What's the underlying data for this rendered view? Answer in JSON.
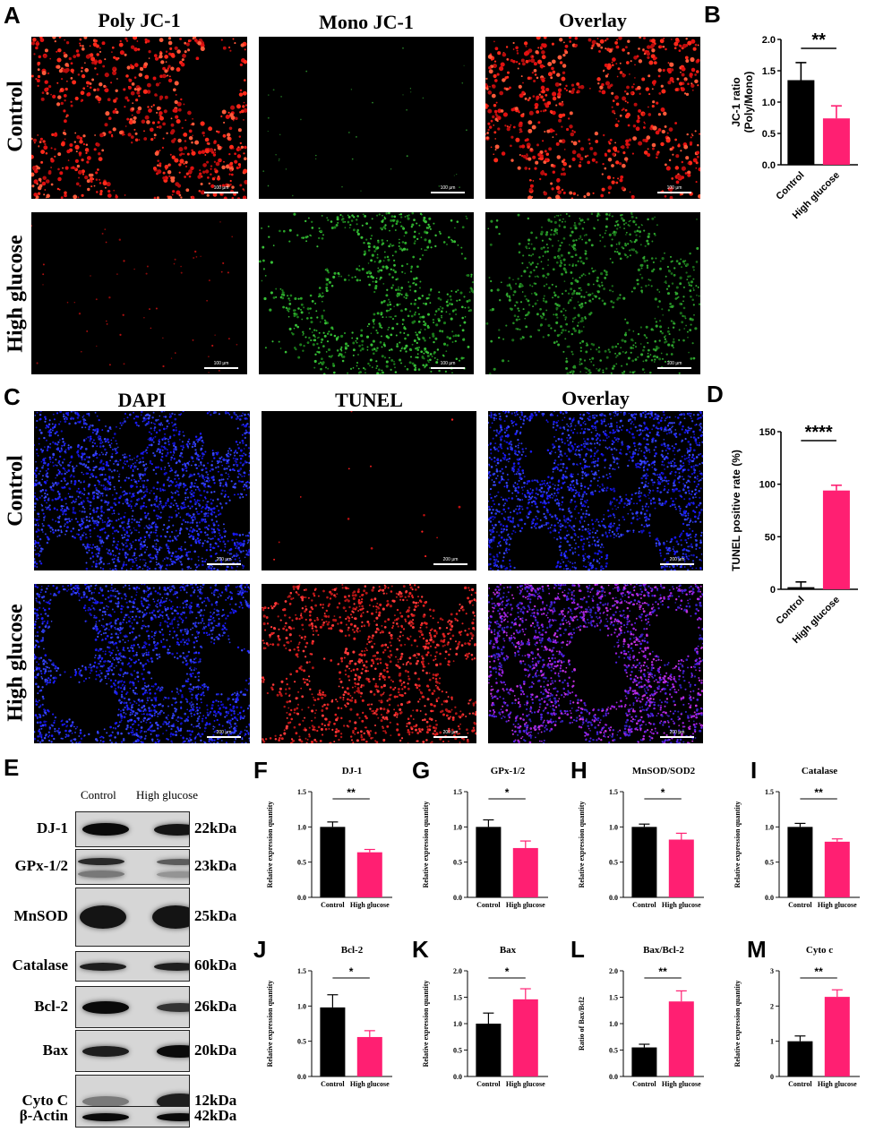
{
  "panelA": {
    "letter": "A",
    "columns": [
      "Poly JC-1",
      "Mono JC-1",
      "Overlay"
    ],
    "rows": [
      "Control",
      "High glucose"
    ],
    "scale": "100 μm"
  },
  "panelC": {
    "letter": "C",
    "columns": [
      "DAPI",
      "TUNEL",
      "Overlay"
    ],
    "rows": [
      "Control",
      "High glucose"
    ],
    "scale": "200 μm"
  },
  "panelE": {
    "letter": "E",
    "headers": [
      "Control",
      "High glucose"
    ],
    "proteins": [
      {
        "name": "DJ-1",
        "kda": "22kDa"
      },
      {
        "name": "GPx-1/2",
        "kda": "23kDa"
      },
      {
        "name": "MnSOD",
        "kda": "25kDa"
      },
      {
        "name": "Catalase",
        "kda": "60kDa"
      },
      {
        "name": "Bcl-2",
        "kda": "26kDa"
      },
      {
        "name": "Bax",
        "kda": "20kDa"
      },
      {
        "name": "Cyto C",
        "kda": "12kDa"
      },
      {
        "name": "β-Actin",
        "kda": "42kDa"
      }
    ]
  },
  "colors": {
    "control": "#000000",
    "high_glucose": "#ff1f72",
    "high_glucose_light": "#ff2d78"
  },
  "chart_data": [
    {
      "id": "B",
      "letter": "B",
      "type": "bar",
      "categories": [
        "Control",
        "High glucose"
      ],
      "values": [
        1.35,
        0.74
      ],
      "errors": [
        0.28,
        0.2
      ],
      "ylabel": "JC-1 ratio\n(Poly/Mono)",
      "title": "",
      "ylim": [
        0,
        2.0
      ],
      "yticks": [
        "0.0",
        "0.5",
        "1.0",
        "1.5",
        "2.0"
      ],
      "significance": "**"
    },
    {
      "id": "D",
      "letter": "D",
      "type": "bar",
      "categories": [
        "Control",
        "High glucose"
      ],
      "values": [
        2,
        94
      ],
      "errors": [
        5,
        5
      ],
      "ylabel": "TUNEL positive rate (%)",
      "title": "",
      "ylim": [
        0,
        150
      ],
      "yticks": [
        "0",
        "50",
        "100",
        "150"
      ],
      "significance": "****"
    },
    {
      "id": "F",
      "letter": "F",
      "type": "bar",
      "title": "DJ-1",
      "categories": [
        "Control",
        "High glucose"
      ],
      "values": [
        1.0,
        0.64
      ],
      "errors": [
        0.07,
        0.04
      ],
      "ylabel": "Relative expression quantity",
      "ylim": [
        0,
        1.5
      ],
      "yticks": [
        "0.0",
        "0.5",
        "1.0",
        "1.5"
      ],
      "significance": "**"
    },
    {
      "id": "G",
      "letter": "G",
      "type": "bar",
      "title": "GPx-1/2",
      "categories": [
        "Control",
        "High glucose"
      ],
      "values": [
        1.0,
        0.7
      ],
      "errors": [
        0.1,
        0.1
      ],
      "ylabel": "Relative expression quantity",
      "ylim": [
        0,
        1.5
      ],
      "yticks": [
        "0.0",
        "0.5",
        "1.0",
        "1.5"
      ],
      "significance": "*"
    },
    {
      "id": "H",
      "letter": "H",
      "type": "bar",
      "title": "MnSOD/SOD2",
      "categories": [
        "Control",
        "High glucose"
      ],
      "values": [
        1.0,
        0.82
      ],
      "errors": [
        0.04,
        0.09
      ],
      "ylabel": "Relative expression quantity",
      "ylim": [
        0,
        1.5
      ],
      "yticks": [
        "0.0",
        "0.5",
        "1.0",
        "1.5"
      ],
      "significance": "*"
    },
    {
      "id": "I",
      "letter": "I",
      "type": "bar",
      "title": "Catalase",
      "categories": [
        "Control",
        "High glucose"
      ],
      "values": [
        1.0,
        0.79
      ],
      "errors": [
        0.05,
        0.04
      ],
      "ylabel": "Relative expression quantity",
      "ylim": [
        0,
        1.5
      ],
      "yticks": [
        "0.0",
        "0.5",
        "1.0",
        "1.5"
      ],
      "significance": "**"
    },
    {
      "id": "J",
      "letter": "J",
      "type": "bar",
      "title": "Bcl-2",
      "categories": [
        "Control",
        "High glucose"
      ],
      "values": [
        0.98,
        0.56
      ],
      "errors": [
        0.18,
        0.09
      ],
      "ylabel": "Relative expression quantity",
      "ylim": [
        0,
        1.5
      ],
      "yticks": [
        "0.0",
        "0.5",
        "1.0",
        "1.5"
      ],
      "significance": "*"
    },
    {
      "id": "K",
      "letter": "K",
      "type": "bar",
      "title": "Bax",
      "categories": [
        "Control",
        "High glucose"
      ],
      "values": [
        1.0,
        1.46
      ],
      "errors": [
        0.2,
        0.2
      ],
      "ylabel": "Relative expression quantity",
      "ylim": [
        0,
        2.0
      ],
      "yticks": [
        "0.0",
        "0.5",
        "1.0",
        "1.5",
        "2.0"
      ],
      "significance": "*"
    },
    {
      "id": "L",
      "letter": "L",
      "type": "bar",
      "title": "Bax/Bcl-2",
      "categories": [
        "Control",
        "High glucose"
      ],
      "values": [
        0.55,
        1.42
      ],
      "errors": [
        0.06,
        0.2
      ],
      "ylabel": "Ratio of Bax/Bcl2",
      "ylim": [
        0,
        2.0
      ],
      "yticks": [
        "0.0",
        "0.5",
        "1.0",
        "1.5",
        "2.0"
      ],
      "significance": "**"
    },
    {
      "id": "M",
      "letter": "M",
      "type": "bar",
      "title": "Cyto c",
      "categories": [
        "Control",
        "High glucose"
      ],
      "values": [
        1.0,
        2.26
      ],
      "errors": [
        0.15,
        0.2
      ],
      "ylabel": "Relative expression quantity",
      "ylim": [
        0,
        3
      ],
      "yticks": [
        "0",
        "1",
        "2",
        "3"
      ],
      "significance": "**"
    }
  ]
}
